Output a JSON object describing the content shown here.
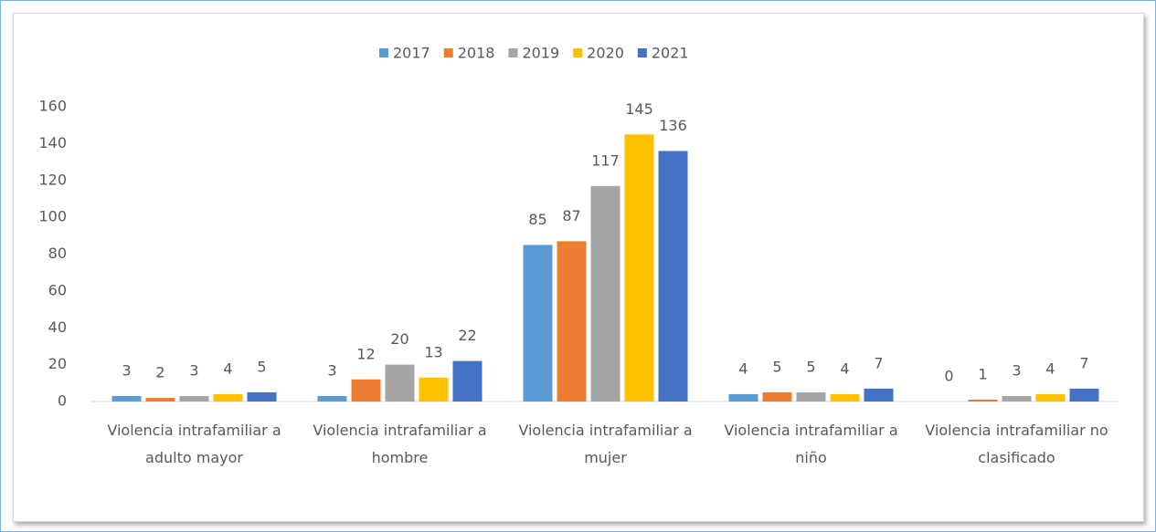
{
  "chart_data": {
    "type": "bar",
    "categories": [
      "Violencia intrafamiliar a adulto mayor",
      "Violencia intrafamiliar a hombre",
      "Violencia intrafamiliar a mujer",
      "Violencia intrafamiliar a niño",
      "Violencia intrafamiliar no clasificado"
    ],
    "series": [
      {
        "name": "2017",
        "color": "#5b9bd5",
        "values": [
          3,
          3,
          85,
          4,
          0
        ]
      },
      {
        "name": "2018",
        "color": "#ed7d31",
        "values": [
          2,
          12,
          87,
          5,
          1
        ]
      },
      {
        "name": "2019",
        "color": "#a5a5a5",
        "values": [
          3,
          20,
          117,
          5,
          3
        ]
      },
      {
        "name": "2020",
        "color": "#ffc000",
        "values": [
          4,
          13,
          145,
          4,
          4
        ]
      },
      {
        "name": "2021",
        "color": "#4472c4",
        "values": [
          5,
          22,
          136,
          7,
          7
        ]
      }
    ],
    "ylim": [
      0,
      160
    ],
    "yticks": [
      0,
      20,
      40,
      60,
      80,
      100,
      120,
      140,
      160
    ],
    "legend": "top",
    "grid": false
  }
}
